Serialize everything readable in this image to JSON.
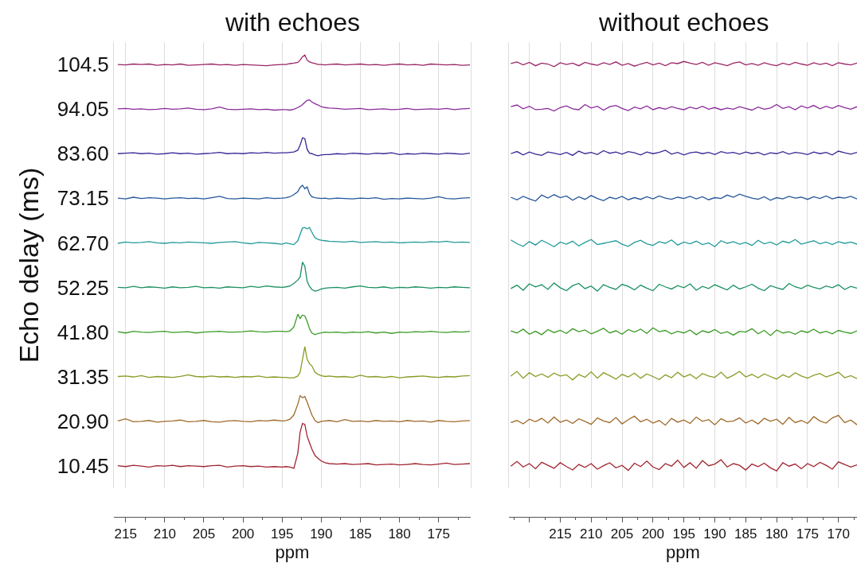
{
  "chart_data": [
    {
      "type": "line",
      "title": "with echoes",
      "xlabel": "ppm",
      "ylabel": "Echo delay (ms)",
      "grid": true,
      "xlim": [
        216.5,
        170.9
      ],
      "xticks": [
        215,
        210,
        205,
        200,
        195,
        190,
        185,
        180,
        175
      ],
      "ylim": [
        5.225,
        109.725
      ],
      "yticks": [
        10.45,
        {
          "value": 20.9,
          "label": "20.90"
        },
        31.35,
        {
          "value": 41.8,
          "label": "41.80"
        },
        52.25,
        {
          "value": 62.7,
          "label": "62.70"
        },
        73.15,
        {
          "value": 83.6,
          "label": "83.60"
        },
        94.05,
        104.5
      ],
      "x": [
        216,
        215,
        214,
        213,
        212,
        211,
        210,
        209,
        208,
        207,
        206,
        205,
        204,
        203,
        202,
        201,
        200,
        199,
        198,
        197,
        196,
        195,
        194.5,
        194,
        193.5,
        193,
        192.7,
        192.4,
        192.1,
        191.8,
        191.5,
        191.2,
        190.8,
        190.4,
        190,
        189.5,
        189,
        188,
        187,
        186,
        185,
        184,
        183,
        182,
        181,
        180,
        179,
        178,
        177,
        176,
        175,
        174,
        173,
        172,
        171
      ],
      "series": [
        {
          "color": "#a02530",
          "values": [
            10.5,
            10.3,
            10.6,
            10.4,
            10.2,
            10.5,
            10.4,
            10.6,
            10.3,
            10.5,
            10.4,
            10.3,
            10.5,
            10.6,
            10.2,
            10.4,
            10.5,
            10.3,
            10.4,
            10.2,
            10.3,
            10.2,
            10.3,
            10.2,
            9.9,
            13.4,
            18.4,
            20.4,
            20.2,
            17.4,
            15.9,
            14.4,
            12.9,
            12.2,
            11.6,
            11.2,
            11.0,
            10.9,
            11.0,
            10.8,
            10.9,
            11.0,
            10.7,
            10.8,
            10.9,
            10.7,
            10.8,
            11.0,
            10.8,
            10.7,
            10.9,
            11.1,
            10.8,
            10.9,
            11.0
          ]
        },
        {
          "color": "#a06a2a",
          "values": [
            21.0,
            21.5,
            20.8,
            20.9,
            21.1,
            20.7,
            20.9,
            21.0,
            21.2,
            20.8,
            20.9,
            21.1,
            20.8,
            20.7,
            21.0,
            21.1,
            20.9,
            20.8,
            21.1,
            21.0,
            21.2,
            21.0,
            21.1,
            21.4,
            22.4,
            24.9,
            26.9,
            26.4,
            26.7,
            25.4,
            23.9,
            22.4,
            21.1,
            20.6,
            20.9,
            21.0,
            21.1,
            20.8,
            21.3,
            20.9,
            21.0,
            20.8,
            21.1,
            20.9,
            21.0,
            20.8,
            21.1,
            20.9,
            21.0,
            20.7,
            21.1,
            20.9,
            20.8,
            21.0,
            21.1
          ]
        },
        {
          "color": "#8a9a25",
          "values": [
            31.4,
            31.5,
            31.3,
            31.6,
            31.2,
            31.4,
            31.3,
            31.2,
            31.4,
            31.8,
            31.4,
            31.3,
            31.5,
            31.3,
            31.4,
            31.2,
            31.4,
            31.3,
            31.5,
            31.2,
            31.3,
            31.2,
            31.2,
            31.1,
            31.1,
            31.5,
            32.4,
            35.4,
            38.4,
            35.4,
            34.4,
            33.9,
            32.4,
            31.9,
            31.6,
            31.4,
            31.5,
            31.3,
            31.4,
            31.2,
            31.7,
            31.3,
            31.4,
            31.2,
            31.4,
            31.1,
            31.3,
            31.4,
            31.5,
            31.3,
            31.2,
            31.4,
            31.3,
            31.5,
            31.6
          ]
        },
        {
          "color": "#3a9a25",
          "values": [
            41.9,
            41.6,
            42.0,
            41.8,
            41.7,
            41.9,
            42.0,
            41.7,
            41.8,
            41.9,
            41.6,
            41.8,
            41.9,
            42.0,
            41.8,
            41.8,
            41.9,
            42.1,
            41.9,
            41.8,
            42.0,
            42.0,
            41.9,
            42.1,
            43.0,
            46.0,
            45.0,
            45.8,
            45.6,
            44.3,
            42.6,
            41.6,
            41.2,
            41.5,
            41.6,
            41.8,
            41.7,
            41.8,
            41.6,
            41.8,
            41.7,
            41.9,
            41.6,
            41.8,
            41.5,
            41.8,
            41.7,
            41.9,
            41.8,
            42.0,
            41.8,
            41.7,
            41.9,
            41.8,
            42.0
          ]
        },
        {
          "color": "#1a9060",
          "values": [
            52.3,
            52.2,
            52.5,
            52.2,
            52.4,
            52.3,
            52.1,
            52.4,
            52.2,
            52.3,
            52.5,
            52.2,
            52.3,
            52.1,
            52.4,
            52.3,
            52.2,
            52.5,
            52.3,
            52.6,
            52.4,
            52.3,
            52.4,
            52.6,
            53.2,
            54.0,
            54.7,
            58.2,
            57.2,
            53.7,
            52.5,
            51.8,
            51.4,
            51.6,
            51.9,
            52.1,
            52.2,
            52.3,
            52.1,
            52.4,
            52.6,
            52.3,
            52.2,
            52.4,
            52.1,
            52.3,
            52.2,
            52.4,
            52.3,
            52.1,
            52.3,
            52.2,
            52.4,
            52.3,
            52.2
          ]
        },
        {
          "color": "#239a9a",
          "values": [
            62.6,
            62.9,
            62.7,
            62.8,
            63.0,
            62.7,
            62.6,
            62.8,
            62.7,
            62.9,
            62.8,
            62.7,
            62.6,
            62.8,
            62.9,
            63.0,
            62.7,
            62.5,
            62.8,
            62.7,
            62.6,
            62.4,
            62.7,
            62.5,
            62.3,
            63.2,
            64.7,
            66.2,
            66.3,
            66.0,
            66.3,
            65.2,
            63.9,
            63.5,
            63.3,
            63.2,
            63.1,
            63.0,
            62.9,
            63.1,
            62.8,
            62.9,
            63.0,
            62.8,
            62.9,
            62.7,
            62.8,
            62.9,
            62.8,
            63.0,
            62.9,
            63.1,
            62.8,
            62.9,
            62.8
          ]
        },
        {
          "color": "#25569a",
          "values": [
            73.2,
            73.0,
            73.4,
            73.1,
            73.3,
            73.2,
            73.0,
            73.2,
            73.3,
            73.1,
            73.2,
            73.0,
            73.3,
            73.6,
            73.1,
            73.0,
            73.2,
            73.1,
            73.0,
            73.3,
            73.1,
            73.2,
            73.3,
            73.5,
            74.0,
            74.7,
            75.7,
            76.2,
            75.4,
            75.8,
            74.2,
            73.5,
            73.3,
            73.2,
            73.1,
            73.2,
            73.0,
            73.2,
            73.1,
            73.0,
            73.2,
            73.1,
            73.3,
            72.9,
            73.1,
            73.0,
            73.2,
            73.1,
            73.0,
            73.2,
            73.5,
            73.1,
            73.0,
            73.2,
            73.3
          ]
        },
        {
          "color": "#3a2595",
          "values": [
            83.6,
            83.7,
            83.8,
            83.6,
            83.7,
            83.5,
            83.6,
            83.8,
            83.6,
            83.7,
            83.5,
            83.6,
            83.7,
            83.9,
            83.6,
            83.7,
            83.6,
            83.8,
            83.7,
            83.9,
            83.7,
            83.8,
            83.8,
            83.9,
            84.0,
            84.4,
            85.6,
            87.3,
            87.1,
            84.6,
            83.7,
            83.6,
            83.3,
            83.1,
            83.3,
            83.4,
            83.4,
            83.6,
            83.5,
            83.7,
            83.6,
            83.5,
            83.7,
            83.6,
            83.8,
            83.4,
            83.6,
            83.5,
            83.7,
            83.6,
            83.5,
            83.7,
            83.6,
            83.5,
            83.7
          ]
        },
        {
          "color": "#8a2a9a",
          "values": [
            94.1,
            94.2,
            94.0,
            94.1,
            93.9,
            94.0,
            94.2,
            94.0,
            94.1,
            94.3,
            94.0,
            93.9,
            94.1,
            94.5,
            94.0,
            93.9,
            94.0,
            94.1,
            93.9,
            94.0,
            93.8,
            93.9,
            93.9,
            93.8,
            94.0,
            94.4,
            94.7,
            95.1,
            95.6,
            96.1,
            96.2,
            95.7,
            95.3,
            95.0,
            94.6,
            94.4,
            94.3,
            94.2,
            94.0,
            94.1,
            94.2,
            93.9,
            94.0,
            94.1,
            93.9,
            94.0,
            94.2,
            93.9,
            94.0,
            94.1,
            94.0,
            94.2,
            93.9,
            94.1,
            94.2
          ]
        },
        {
          "color": "#9a2565",
          "values": [
            104.5,
            104.4,
            104.6,
            104.5,
            104.6,
            104.3,
            104.5,
            104.4,
            104.6,
            104.3,
            104.4,
            104.5,
            104.6,
            104.4,
            104.5,
            104.3,
            104.5,
            104.4,
            104.3,
            104.2,
            104.4,
            104.5,
            104.5,
            104.7,
            104.8,
            105.0,
            105.5,
            106.3,
            106.7,
            105.5,
            105.1,
            104.9,
            104.7,
            104.5,
            104.5,
            104.4,
            104.5,
            104.6,
            104.4,
            104.5,
            104.6,
            104.4,
            104.5,
            104.3,
            104.5,
            104.6,
            104.4,
            104.5,
            104.3,
            104.6,
            104.5,
            104.4,
            104.5,
            104.3,
            104.4
          ]
        }
      ]
    },
    {
      "type": "line",
      "title": "without echoes",
      "xlabel": "ppm",
      "grid": true,
      "tick_labels": "x",
      "xlim": [
        223.3,
        167
      ],
      "xticks": [
        {
          "value": 220,
          "label": null
        },
        215,
        210,
        205,
        200,
        195,
        190,
        185,
        180,
        175,
        170
      ],
      "ylim": [
        5.225,
        109.725
      ],
      "yticks": [
        10.45,
        20.9,
        31.35,
        41.8,
        52.25,
        62.7,
        73.15,
        83.6,
        94.05,
        104.5
      ],
      "x": [
        223,
        222,
        221,
        220,
        219,
        218,
        217,
        216,
        215,
        214,
        213,
        212,
        211,
        210,
        209,
        208,
        207,
        206,
        205,
        204,
        203,
        202,
        201,
        200,
        199,
        198,
        197,
        196,
        195,
        194,
        193,
        192,
        191,
        190,
        189,
        188,
        187,
        186,
        185,
        184,
        183,
        182,
        181,
        180,
        179,
        178,
        177,
        176,
        175,
        174,
        173,
        172,
        171,
        170,
        169,
        168,
        167
      ],
      "series": [
        {
          "color": "#a02530",
          "values": [
            10.4,
            11.5,
            10.2,
            11.0,
            9.8,
            11.3,
            10.6,
            9.9,
            11.2,
            10.3,
            9.5,
            10.8,
            10.1,
            11.0,
            9.7,
            10.5,
            11.2,
            10.0,
            10.6,
            9.4,
            11.1,
            10.3,
            11.6,
            10.2,
            9.6,
            11.0,
            10.4,
            11.8,
            10.1,
            11.2,
            9.9,
            11.7,
            10.5,
            10.9,
            11.9,
            10.2,
            11.0,
            10.6,
            9.5,
            10.9,
            10.3,
            11.1,
            10.0,
            9.3,
            11.2,
            10.4,
            10.9,
            9.8,
            11.0,
            10.3,
            11.3,
            10.6,
            9.7,
            11.4,
            10.8,
            10.2,
            10.7
          ]
        },
        {
          "color": "#a06a2a",
          "values": [
            20.6,
            21.1,
            20.3,
            21.4,
            20.8,
            21.6,
            20.5,
            21.9,
            20.7,
            21.2,
            20.4,
            21.5,
            20.9,
            20.2,
            21.7,
            21.0,
            20.6,
            21.8,
            20.3,
            21.3,
            22.1,
            20.8,
            21.4,
            20.5,
            21.1,
            20.0,
            21.6,
            20.7,
            21.2,
            20.4,
            21.9,
            20.9,
            21.3,
            20.1,
            21.5,
            20.8,
            21.0,
            21.7,
            20.5,
            21.2,
            20.3,
            21.6,
            20.9,
            21.4,
            20.2,
            21.8,
            20.6,
            21.1,
            20.4,
            22.0,
            21.0,
            20.5,
            21.7,
            22.3,
            20.6,
            21.2,
            20.1
          ]
        },
        {
          "color": "#8a9a25",
          "values": [
            31.5,
            32.6,
            31.0,
            32.3,
            31.4,
            32.0,
            31.2,
            32.2,
            31.5,
            31.8,
            30.6,
            31.9,
            31.2,
            32.5,
            31.0,
            32.3,
            31.6,
            30.8,
            31.9,
            31.3,
            32.2,
            31.0,
            32.0,
            31.4,
            30.7,
            31.8,
            31.1,
            32.4,
            31.3,
            31.9,
            30.9,
            32.1,
            31.5,
            31.2,
            32.4,
            31.0,
            31.7,
            32.6,
            31.3,
            31.9,
            31.1,
            32.0,
            31.4,
            30.8,
            31.8,
            31.2,
            32.3,
            31.5,
            31.0,
            31.7,
            32.1,
            31.3,
            31.8,
            32.4,
            31.1,
            31.6,
            30.9
          ]
        },
        {
          "color": "#3a9a25",
          "values": [
            42.1,
            41.6,
            42.5,
            41.3,
            42.0,
            41.2,
            42.4,
            41.7,
            42.2,
            41.5,
            42.6,
            41.9,
            42.3,
            41.4,
            42.0,
            42.7,
            41.6,
            42.1,
            41.3,
            42.4,
            41.8,
            42.5,
            41.5,
            42.8,
            41.9,
            42.2,
            41.4,
            42.0,
            41.6,
            42.3,
            41.2,
            42.1,
            41.7,
            42.4,
            41.5,
            41.9,
            41.1,
            42.0,
            41.8,
            42.6,
            41.4,
            42.2,
            41.0,
            42.3,
            41.6,
            41.9,
            41.3,
            42.1,
            41.7,
            42.5,
            41.6,
            42.0,
            41.4,
            42.2,
            41.8,
            41.5,
            42.1
          ]
        },
        {
          "color": "#1a9060",
          "values": [
            52.0,
            52.8,
            51.6,
            53.1,
            52.4,
            52.9,
            51.8,
            53.3,
            52.2,
            51.5,
            52.7,
            53.2,
            52.0,
            52.6,
            51.4,
            52.9,
            52.3,
            51.8,
            53.0,
            52.5,
            51.7,
            52.8,
            52.1,
            51.5,
            53.0,
            52.4,
            51.9,
            52.7,
            52.2,
            53.1,
            51.6,
            52.5,
            52.0,
            52.9,
            52.3,
            51.7,
            52.8,
            51.9,
            52.4,
            53.0,
            52.1,
            51.5,
            52.7,
            52.2,
            51.8,
            53.2,
            52.4,
            52.0,
            52.8,
            52.3,
            51.9,
            52.6,
            52.2,
            52.9,
            51.8,
            52.5,
            52.1
          ]
        },
        {
          "color": "#239a9a",
          "values": [
            63.4,
            62.5,
            61.9,
            63.0,
            62.2,
            63.3,
            62.6,
            61.8,
            62.9,
            62.4,
            63.1,
            62.0,
            62.8,
            63.5,
            62.3,
            62.6,
            62.9,
            63.2,
            62.4,
            61.9,
            62.8,
            63.3,
            62.5,
            62.1,
            63.0,
            62.6,
            63.4,
            62.2,
            62.9,
            62.5,
            63.1,
            62.3,
            62.7,
            61.8,
            63.2,
            62.6,
            63.0,
            62.4,
            62.8,
            62.1,
            63.3,
            62.5,
            62.9,
            62.2,
            63.1,
            62.7,
            63.5,
            62.4,
            62.8,
            63.2,
            62.5,
            62.9,
            62.3,
            63.0,
            62.6,
            62.9,
            62.4
          ]
        },
        {
          "color": "#25569a",
          "values": [
            73.4,
            72.8,
            73.6,
            73.0,
            72.5,
            73.9,
            73.2,
            74.0,
            73.3,
            73.7,
            72.7,
            73.5,
            72.9,
            73.8,
            73.1,
            72.6,
            73.4,
            73.0,
            73.6,
            72.8,
            73.3,
            72.9,
            73.5,
            73.0,
            73.7,
            73.2,
            72.9,
            73.4,
            73.1,
            73.6,
            73.0,
            73.5,
            72.8,
            73.3,
            73.1,
            73.9,
            73.4,
            74.1,
            73.6,
            73.2,
            72.9,
            73.5,
            72.7,
            73.3,
            73.0,
            73.6,
            73.2,
            73.4,
            72.9,
            73.5,
            73.1,
            73.7,
            73.0,
            73.4,
            73.2,
            73.6,
            73.0
          ]
        },
        {
          "color": "#3a2595",
          "values": [
            83.6,
            84.1,
            83.3,
            84.0,
            83.5,
            83.2,
            84.0,
            83.7,
            83.4,
            83.9,
            83.2,
            84.2,
            83.6,
            83.9,
            83.4,
            84.3,
            83.7,
            84.0,
            83.5,
            84.1,
            83.8,
            83.3,
            84.0,
            83.6,
            83.9,
            84.4,
            83.5,
            83.9,
            83.3,
            83.8,
            84.0,
            83.6,
            83.9,
            83.4,
            84.1,
            83.7,
            83.9,
            83.5,
            84.0,
            83.6,
            83.9,
            83.3,
            83.8,
            83.6,
            84.1,
            83.5,
            83.9,
            83.7,
            83.4,
            84.0,
            83.6,
            83.9,
            83.3,
            84.2,
            83.8,
            83.5,
            83.9
          ]
        },
        {
          "color": "#8a2a9a",
          "values": [
            94.6,
            95.0,
            94.1,
            94.7,
            93.9,
            94.0,
            94.2,
            93.6,
            94.4,
            94.8,
            94.1,
            93.9,
            95.1,
            94.3,
            94.7,
            93.8,
            94.6,
            94.9,
            94.2,
            93.7,
            94.5,
            94.1,
            94.8,
            93.9,
            94.4,
            94.0,
            94.6,
            94.2,
            93.9,
            94.5,
            94.1,
            94.7,
            94.0,
            94.4,
            93.9,
            94.3,
            94.0,
            94.6,
            94.2,
            93.8,
            94.5,
            94.0,
            94.3,
            95.1,
            94.2,
            94.6,
            93.9,
            94.8,
            94.3,
            94.9,
            94.1,
            94.7,
            94.2,
            94.9,
            94.4,
            94.0,
            94.6
          ]
        },
        {
          "color": "#9a2565",
          "values": [
            104.7,
            105.1,
            104.4,
            105.0,
            104.2,
            104.8,
            104.6,
            104.0,
            104.9,
            104.5,
            104.8,
            104.2,
            105.0,
            104.6,
            104.3,
            104.9,
            104.5,
            105.1,
            104.3,
            104.7,
            104.1,
            104.6,
            105.0,
            104.4,
            104.8,
            104.2,
            104.9,
            104.7,
            105.2,
            104.8,
            104.5,
            105.0,
            104.3,
            104.9,
            104.6,
            104.2,
            104.8,
            105.1,
            104.4,
            104.7,
            104.3,
            104.9,
            104.5,
            104.2,
            104.8,
            104.4,
            105.0,
            104.6,
            104.3,
            104.9,
            104.5,
            104.8,
            104.2,
            104.9,
            104.6,
            104.4,
            104.8
          ]
        }
      ]
    }
  ]
}
